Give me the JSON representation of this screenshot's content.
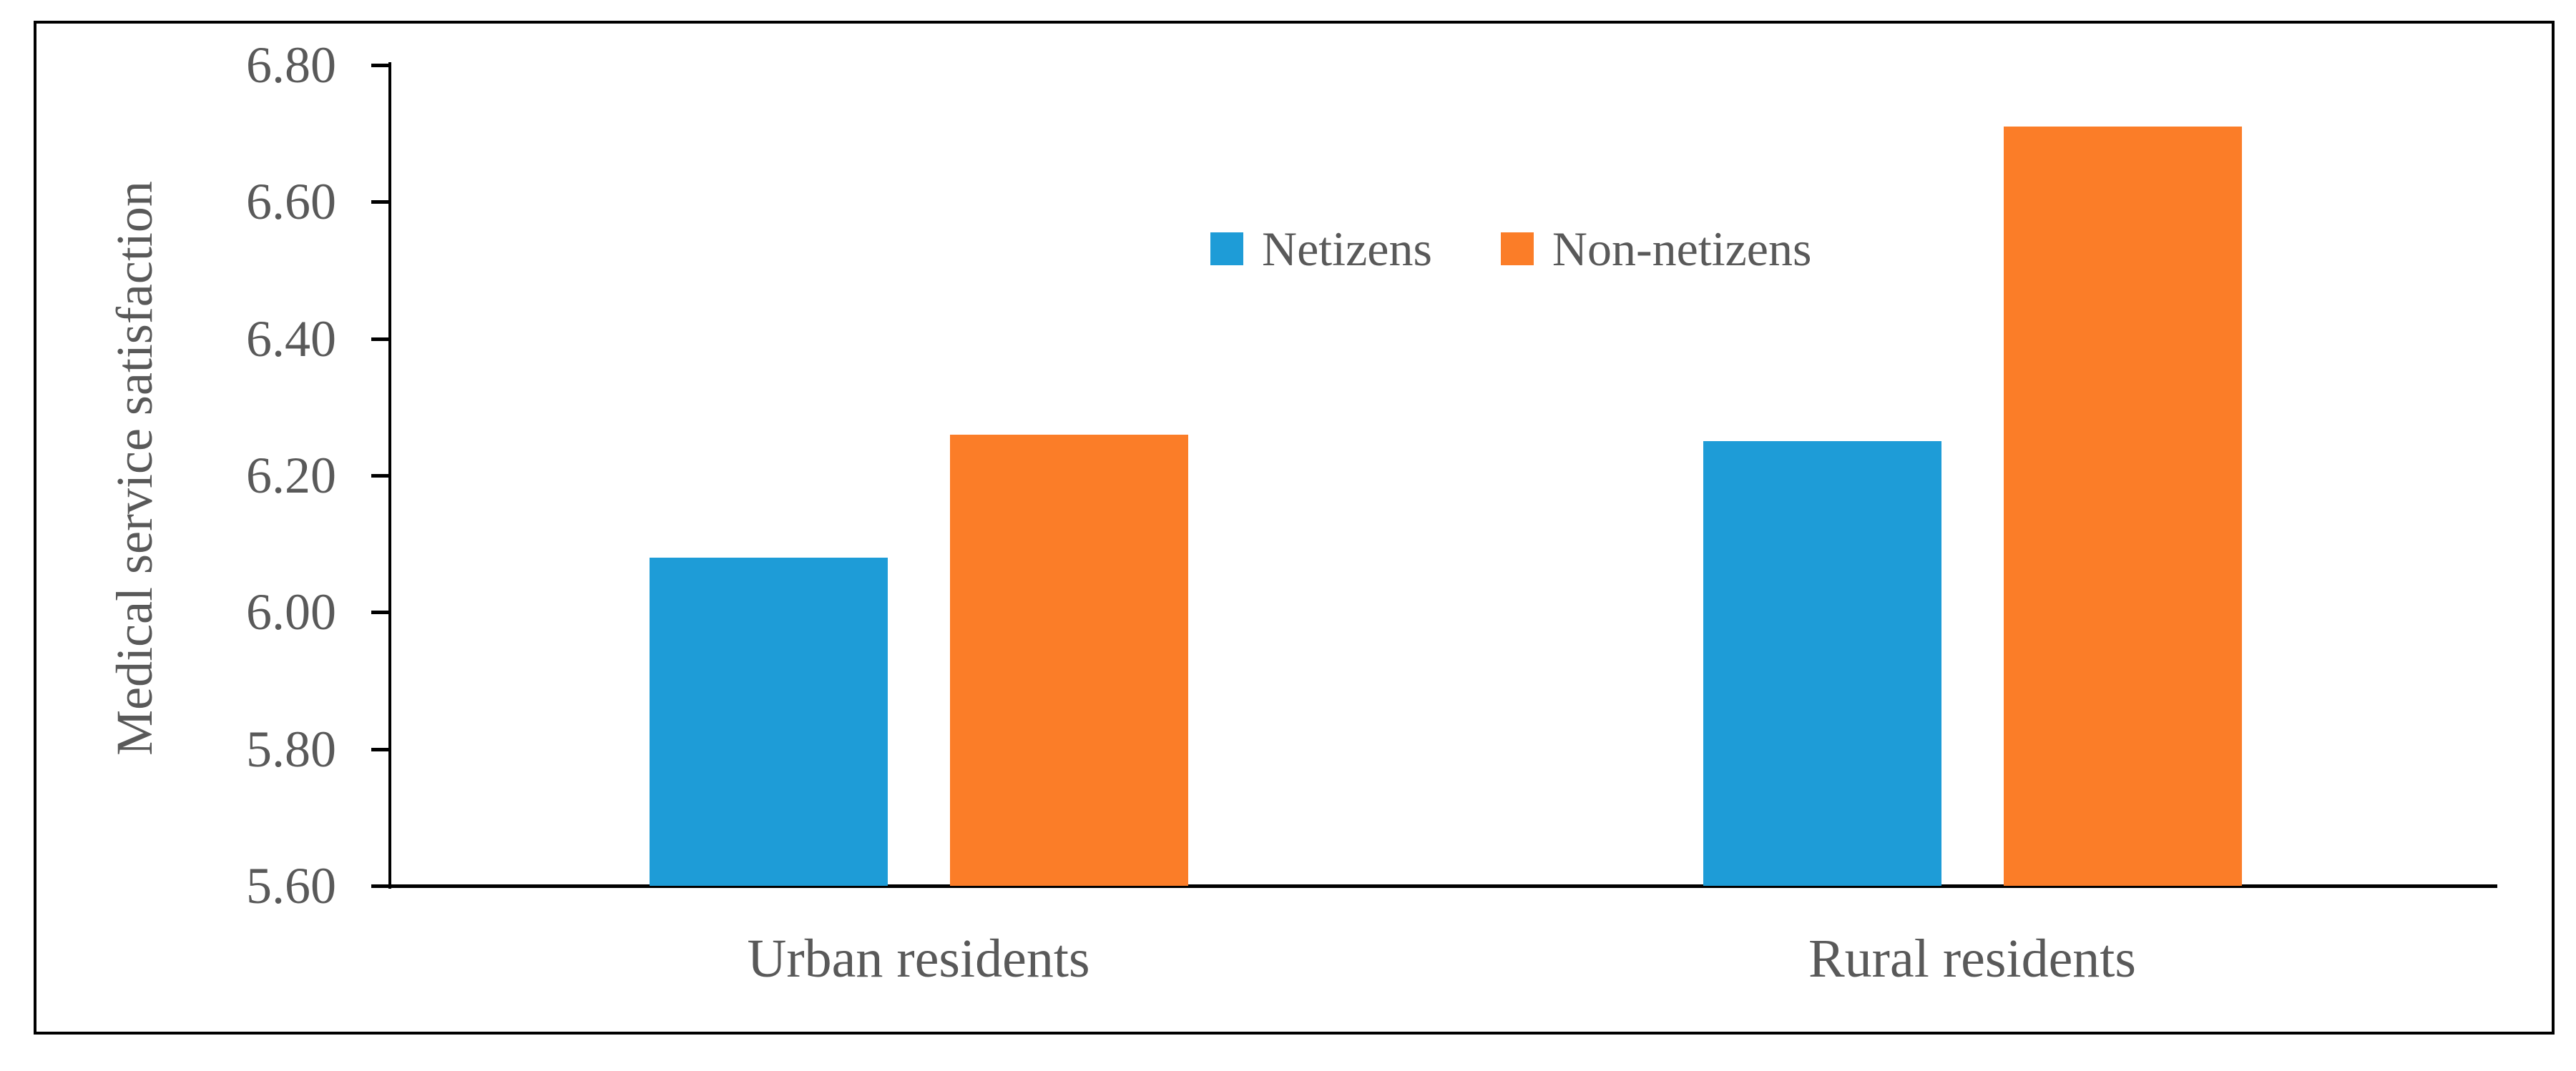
{
  "chart_data": {
    "type": "bar",
    "title": "",
    "categories": [
      "Urban residents",
      "Rural residents"
    ],
    "series": [
      {
        "name": "Netizens",
        "color": "#1E9CD7",
        "values": [
          6.08,
          6.25
        ]
      },
      {
        "name": "Non-netizens",
        "color": "#FB7D28",
        "values": [
          6.26,
          6.71
        ]
      }
    ],
    "xlabel": "",
    "ylabel": "Medical service satisfaction",
    "ylim": [
      5.6,
      6.8
    ],
    "ytick_labels": [
      "5.60",
      "5.80",
      "6.00",
      "6.20",
      "6.40",
      "6.60",
      "6.80"
    ],
    "grid": false,
    "legend_position": "inside-top-center",
    "axis_color": "#000000",
    "text_color": "#595959",
    "frame_color": "#000000"
  }
}
